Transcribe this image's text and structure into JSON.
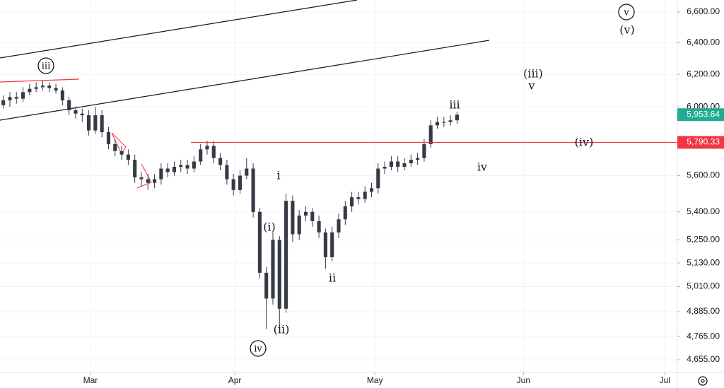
{
  "chart_data": {
    "type": "candlestick",
    "color": "#363a45",
    "open": [
      6010,
      6040,
      6060,
      6050,
      6090,
      6110,
      6120,
      6130,
      6115,
      6100,
      6040,
      5980,
      5960,
      5950,
      5860,
      5950,
      5850,
      5780,
      5740,
      5720,
      5690,
      5590,
      5580,
      5560,
      5580,
      5640,
      5620,
      5650,
      5660,
      5640,
      5680,
      5750,
      5770,
      5700,
      5660,
      5580,
      5520,
      5600,
      5640,
      5400,
      5080,
      4950,
      5250,
      4900,
      5460,
      5280,
      5380,
      5400,
      5350,
      5290,
      5160,
      5290,
      5360,
      5430,
      5480,
      5470,
      5510,
      5530,
      5640,
      5650,
      5680,
      5650,
      5670,
      5690,
      5700,
      5780,
      5890,
      5910,
      5910,
      5920
    ],
    "high": [
      6070,
      6090,
      6090,
      6120,
      6140,
      6150,
      6160,
      6150,
      6140,
      6120,
      6060,
      6000,
      5990,
      5980,
      6000,
      5980,
      5880,
      5810,
      5770,
      5750,
      5720,
      5620,
      5610,
      5610,
      5670,
      5670,
      5680,
      5690,
      5690,
      5710,
      5780,
      5800,
      5800,
      5730,
      5690,
      5610,
      5630,
      5700,
      5670,
      5420,
      5110,
      5290,
      5270,
      5500,
      5490,
      5410,
      5430,
      5420,
      5380,
      5310,
      5320,
      5390,
      5460,
      5510,
      5510,
      5540,
      5560,
      5670,
      5680,
      5710,
      5710,
      5700,
      5720,
      5730,
      5810,
      5920,
      5940,
      5940,
      5950,
      5970
    ],
    "low": [
      5990,
      6000,
      6020,
      6030,
      6070,
      6090,
      6100,
      6090,
      6080,
      6010,
      5950,
      5930,
      5910,
      5830,
      5840,
      5820,
      5750,
      5710,
      5690,
      5660,
      5560,
      5540,
      5520,
      5530,
      5550,
      5590,
      5600,
      5620,
      5610,
      5620,
      5660,
      5720,
      5670,
      5630,
      5550,
      5490,
      5500,
      5580,
      5370,
      5050,
      4800,
      4920,
      4810,
      4880,
      5240,
      5250,
      5350,
      5320,
      5260,
      5100,
      5140,
      5260,
      5330,
      5400,
      5440,
      5450,
      5480,
      5500,
      5610,
      5630,
      5620,
      5630,
      5650,
      5660,
      5680,
      5760,
      5870,
      5880,
      5890,
      5900
    ],
    "close": [
      6040,
      6060,
      6050,
      6090,
      6110,
      6120,
      6130,
      6115,
      6100,
      6040,
      5980,
      5960,
      5950,
      5860,
      5950,
      5850,
      5780,
      5740,
      5720,
      5690,
      5590,
      5580,
      5560,
      5580,
      5640,
      5620,
      5650,
      5660,
      5640,
      5680,
      5750,
      5770,
      5700,
      5660,
      5580,
      5520,
      5600,
      5640,
      5400,
      5080,
      4950,
      5250,
      4900,
      5460,
      5280,
      5380,
      5400,
      5350,
      5290,
      5160,
      5290,
      5360,
      5430,
      5480,
      5470,
      5510,
      5530,
      5640,
      5650,
      5680,
      5650,
      5670,
      5690,
      5700,
      5780,
      5890,
      5910,
      5910,
      5920,
      5953.64
    ],
    "xlim": [
      -0.5,
      102.5
    ],
    "xticks": [
      {
        "value": 13.26,
        "label": "Mar"
      },
      {
        "value": 35.2,
        "label": "Apr"
      },
      {
        "value": 56.5,
        "label": "May"
      },
      {
        "value": 79.1,
        "label": "Jun"
      },
      {
        "value": 100.6,
        "label": "Jul"
      }
    ],
    "ylim": [
      4596,
      6680
    ],
    "log_scale": true,
    "grid": true,
    "yticks": [
      {
        "value": 6600,
        "label": "6,600.00"
      },
      {
        "value": 6400,
        "label": "6,400.00"
      },
      {
        "value": 6200,
        "label": "6,200.00"
      },
      {
        "value": 6000,
        "label": "6,000.00"
      },
      {
        "value": 5600,
        "label": "5,600.00"
      },
      {
        "value": 5400,
        "label": "5,400.00"
      },
      {
        "value": 5250,
        "label": "5,250.00"
      },
      {
        "value": 5130,
        "label": "5,130.00"
      },
      {
        "value": 5010,
        "label": "5,010.00"
      },
      {
        "value": 4885,
        "label": "4,885.00"
      },
      {
        "value": 4765,
        "label": "4,765.00"
      },
      {
        "value": 4655,
        "label": "4,655.00"
      }
    ],
    "last_price": {
      "value": 5953.64,
      "label": "5,953.64",
      "color": "#22ab94"
    },
    "hline": {
      "value": 5790.33,
      "label": "5,790.33",
      "color": "#f23645"
    },
    "annotations": [
      "iii",
      "iv",
      "v",
      "(v)",
      "(iii)",
      "v",
      "iii",
      "(iv)",
      "iv",
      "i",
      "(i)",
      "(ii)",
      "ii"
    ]
  }
}
